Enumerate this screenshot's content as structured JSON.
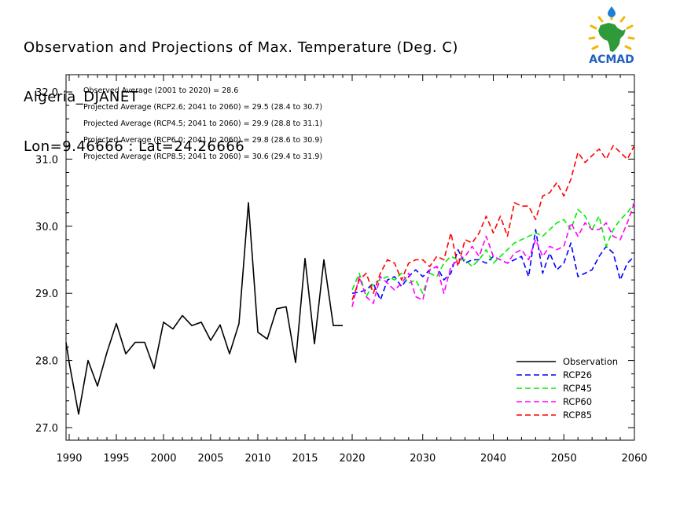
{
  "header": {
    "title": "Observation and Projections of Max. Temperature (Deg. C)",
    "location": "Algeria_DJANET",
    "coords": "Lon=9.46666 : Lat=24.26666"
  },
  "logo": {
    "text": "ACMAD"
  },
  "chart_data": {
    "type": "line",
    "title": "Observation and Projections of Max. Temperature (Deg. C)",
    "xlabel": "",
    "ylabel": "",
    "xlim": [
      1989,
      2060
    ],
    "ylim": [
      26.7,
      32.2
    ],
    "grid": false,
    "legend_position": "bottom-right",
    "x_ticks": [
      {
        "value": 1990,
        "label": "1990"
      },
      {
        "value": 1995,
        "label": "1995"
      },
      {
        "value": 2000,
        "label": "2000"
      },
      {
        "value": 2005,
        "label": "2005"
      },
      {
        "value": 2010,
        "label": "2010"
      },
      {
        "value": 2015,
        "label": "2015"
      },
      {
        "value": 2020,
        "label": "2020"
      },
      {
        "value": 2030,
        "label": "2030"
      },
      {
        "value": 2040,
        "label": "2040"
      },
      {
        "value": 2050,
        "label": "2050"
      },
      {
        "value": 2060,
        "label": "2060"
      }
    ],
    "y_ticks": [
      {
        "value": 27.0,
        "label": "27.0"
      },
      {
        "value": 28.0,
        "label": "28.0"
      },
      {
        "value": 29.0,
        "label": "29.0"
      },
      {
        "value": 30.0,
        "label": "30.0"
      },
      {
        "value": 31.0,
        "label": "31.0"
      },
      {
        "value": 32.0,
        "label": "32.0"
      }
    ],
    "annotations": [
      "Observed Average (2001 to 2020) = 28.6",
      "Projected Average (RCP2.6; 2041 to 2060) = 29.5 (28.4 to 30.7)",
      "Projected Average (RCP4.5; 2041 to 2060) = 29.9 (28.8 to 31.1)",
      "Projected Average (RCP6.0; 2041 to 2060) = 29.8 (28.6 to 30.9)",
      "Projected Average (RCP8.5; 2041 to 2060) = 30.6 (29.4 to 31.9)"
    ],
    "series": [
      {
        "name": "Observation",
        "color": "#000000",
        "dash": "solid",
        "x": [
          1989,
          1990,
          1991,
          1992,
          1993,
          1994,
          1995,
          1996,
          1997,
          1998,
          1999,
          2000,
          2001,
          2002,
          2003,
          2004,
          2005,
          2006,
          2007,
          2008,
          2009,
          2010,
          2011,
          2012,
          2013,
          2014,
          2015,
          2016,
          2017,
          2018,
          2019
        ],
        "y": [
          28.27,
          27.97,
          27.2,
          28.0,
          27.62,
          28.12,
          28.55,
          28.1,
          28.27,
          28.27,
          27.88,
          28.57,
          28.47,
          28.67,
          28.52,
          28.57,
          28.3,
          28.53,
          28.1,
          28.55,
          30.35,
          28.42,
          28.32,
          28.77,
          28.8,
          27.97,
          29.52,
          28.25,
          29.5,
          28.52,
          28.52
        ]
      },
      {
        "name": "RCP26",
        "color": "#0000ff",
        "dash": "dashed",
        "x": [
          2020,
          2021,
          2022,
          2023,
          2024,
          2025,
          2026,
          2027,
          2028,
          2029,
          2030,
          2031,
          2032,
          2033,
          2034,
          2035,
          2036,
          2037,
          2038,
          2039,
          2040,
          2041,
          2042,
          2043,
          2044,
          2045,
          2046,
          2047,
          2048,
          2049,
          2050,
          2051,
          2052,
          2053,
          2054,
          2055,
          2056,
          2057,
          2058,
          2059,
          2060
        ],
        "y": [
          29.0,
          29.02,
          29.05,
          29.15,
          28.9,
          29.2,
          29.25,
          29.1,
          29.25,
          29.35,
          29.25,
          29.35,
          29.4,
          29.2,
          29.3,
          29.65,
          29.45,
          29.5,
          29.5,
          29.45,
          29.55,
          29.5,
          29.45,
          29.5,
          29.55,
          29.25,
          29.95,
          29.3,
          29.6,
          29.35,
          29.45,
          29.75,
          29.25,
          29.3,
          29.35,
          29.55,
          29.7,
          29.6,
          29.2,
          29.45,
          29.55
        ]
      },
      {
        "name": "RCP45",
        "color": "#00ee00",
        "dash": "dashed",
        "x": [
          2020,
          2021,
          2022,
          2023,
          2024,
          2025,
          2026,
          2027,
          2028,
          2029,
          2030,
          2031,
          2032,
          2033,
          2034,
          2035,
          2036,
          2037,
          2038,
          2039,
          2040,
          2041,
          2042,
          2043,
          2044,
          2045,
          2046,
          2047,
          2048,
          2049,
          2050,
          2051,
          2052,
          2053,
          2054,
          2055,
          2056,
          2057,
          2058,
          2059,
          2060
        ],
        "y": [
          29.05,
          29.3,
          28.95,
          29.15,
          29.2,
          29.25,
          29.2,
          29.3,
          29.15,
          29.2,
          29.0,
          29.3,
          29.25,
          29.45,
          29.55,
          29.5,
          29.5,
          29.4,
          29.5,
          29.65,
          29.45,
          29.55,
          29.65,
          29.75,
          29.8,
          29.85,
          29.9,
          29.85,
          29.95,
          30.05,
          30.1,
          29.95,
          30.25,
          30.15,
          29.95,
          30.15,
          29.7,
          29.95,
          30.1,
          30.2,
          30.35
        ]
      },
      {
        "name": "RCP60",
        "color": "#ff00ff",
        "dash": "dashed",
        "x": [
          2020,
          2021,
          2022,
          2023,
          2024,
          2025,
          2026,
          2027,
          2028,
          2029,
          2030,
          2031,
          2032,
          2033,
          2034,
          2035,
          2036,
          2037,
          2038,
          2039,
          2040,
          2041,
          2042,
          2043,
          2044,
          2045,
          2046,
          2047,
          2048,
          2049,
          2050,
          2051,
          2052,
          2053,
          2054,
          2055,
          2056,
          2057,
          2058,
          2059,
          2060
        ],
        "y": [
          28.8,
          29.25,
          28.95,
          28.85,
          29.25,
          29.15,
          29.05,
          29.15,
          29.3,
          28.95,
          28.9,
          29.35,
          29.4,
          29.0,
          29.4,
          29.5,
          29.55,
          29.7,
          29.55,
          29.85,
          29.55,
          29.5,
          29.45,
          29.6,
          29.65,
          29.5,
          29.8,
          29.55,
          29.7,
          29.65,
          29.7,
          30.05,
          29.85,
          30.05,
          29.95,
          29.95,
          30.05,
          29.85,
          29.8,
          30.05,
          30.35
        ]
      },
      {
        "name": "RCP85",
        "color": "#ff0000",
        "dash": "dashed",
        "x": [
          2020,
          2021,
          2022,
          2023,
          2024,
          2025,
          2026,
          2027,
          2028,
          2029,
          2030,
          2031,
          2032,
          2033,
          2034,
          2035,
          2036,
          2037,
          2038,
          2039,
          2040,
          2041,
          2042,
          2043,
          2044,
          2045,
          2046,
          2047,
          2048,
          2049,
          2050,
          2051,
          2052,
          2053,
          2054,
          2055,
          2056,
          2057,
          2058,
          2059,
          2060
        ],
        "y": [
          28.9,
          29.2,
          29.3,
          29.0,
          29.3,
          29.5,
          29.45,
          29.2,
          29.45,
          29.5,
          29.5,
          29.4,
          29.55,
          29.5,
          29.9,
          29.4,
          29.8,
          29.75,
          29.9,
          30.15,
          29.9,
          30.15,
          29.85,
          30.35,
          30.3,
          30.3,
          30.1,
          30.45,
          30.5,
          30.65,
          30.45,
          30.7,
          31.1,
          30.95,
          31.05,
          31.15,
          31.0,
          31.2,
          31.1,
          31.0,
          31.2
        ]
      }
    ]
  }
}
